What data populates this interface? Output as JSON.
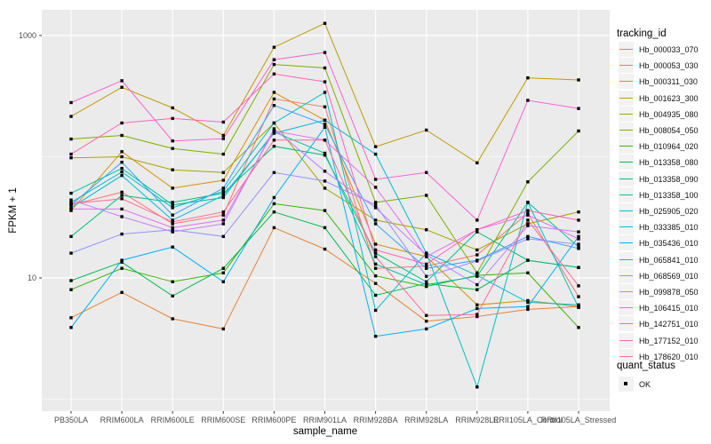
{
  "figure": {
    "x_axis_title": "sample_name",
    "y_axis_title": "FPKM + 1",
    "y_ticks": [
      {
        "label": "1000",
        "value": 1000
      },
      {
        "label": "10",
        "value": 10
      }
    ],
    "legend_tracking": {
      "title": "tracking_id"
    },
    "legend_quant": {
      "title": "quant_status",
      "items": [
        {
          "label": "OK",
          "marker": "black-square"
        }
      ]
    },
    "colors": {
      "panel_background": "#EBEBEB",
      "gridline": "#FFFFFF",
      "point": "#000000",
      "tick_text": "#4D4D4D",
      "legend_key_background": "#F2F2F2"
    }
  },
  "chart_data": {
    "type": "line",
    "x_scale": "categorical",
    "y_scale": "log10",
    "xlabel": "sample_name",
    "ylabel": "FPKM + 1",
    "ylim": [
      0.8,
      1650
    ],
    "y_axis_breaks": [
      10,
      1000
    ],
    "y_minor_breaks": [
      1,
      100
    ],
    "grid": "on",
    "legend_position": "right",
    "point_marker": "small-black-square",
    "categories": [
      "PB350LA",
      "RRIM600LA",
      "RRIM600LE",
      "RRIM600SE",
      "RRIM600PE",
      "RRIM901LA",
      "RRIM928BA",
      "RRIM928LA",
      "RRIM928LE",
      "RRII105LA_Control",
      "RRII105LA_Stressed"
    ],
    "series": [
      {
        "name": "Hb_000033_070",
        "color": "#F8766D",
        "quant_status": "OK",
        "values": [
          40,
          51,
          28,
          33,
          300,
          258,
          12,
          12.5,
          15.5,
          34,
          7
        ]
      },
      {
        "name": "Hb_000053_030",
        "color": "#EA8331",
        "quant_status": "OK",
        "values": [
          4.7,
          7.6,
          4.6,
          3.8,
          26,
          17.3,
          9,
          4.4,
          4.8,
          5.5,
          5.8
        ]
      },
      {
        "name": "Hb_000311_030",
        "color": "#D89000",
        "quant_status": "OK",
        "values": [
          36,
          110,
          55,
          64,
          340,
          200,
          19,
          15,
          6,
          6.5,
          5.8
        ]
      },
      {
        "name": "Hb_001623_300",
        "color": "#C09B00",
        "quant_status": "OK",
        "values": [
          215,
          374,
          253,
          150,
          800,
          1260,
          121,
          166,
          89,
          447,
          430
        ]
      },
      {
        "name": "Hb_004935_080",
        "color": "#A3A500",
        "quant_status": "OK",
        "values": [
          98,
          100,
          78,
          74,
          190,
          55,
          30,
          25,
          17,
          28,
          35
        ]
      },
      {
        "name": "Hb_008054_050",
        "color": "#7CAE00",
        "quant_status": "OK",
        "values": [
          140,
          150,
          117,
          105,
          577,
          540,
          42,
          48,
          11,
          62,
          163
        ]
      },
      {
        "name": "Hb_010964_020",
        "color": "#39B600",
        "quant_status": "OK",
        "values": [
          8,
          12,
          9.3,
          11,
          41,
          36,
          10.4,
          8.5,
          10.5,
          11,
          3.9
        ]
      },
      {
        "name": "Hb_013358_080",
        "color": "#00BB4E",
        "quant_status": "OK",
        "values": [
          9.5,
          13.5,
          7.1,
          12,
          35,
          26,
          7.2,
          9,
          8,
          14,
          12.2
        ]
      },
      {
        "name": "Hb_013358_090",
        "color": "#00BF7D",
        "quant_status": "OK",
        "values": [
          22,
          48,
          42,
          50,
          122,
          103,
          16,
          9.3,
          24,
          14,
          12.2
        ]
      },
      {
        "name": "Hb_013358_100",
        "color": "#00C1A3",
        "quant_status": "OK",
        "values": [
          50,
          80,
          40,
          46,
          160,
          107,
          13,
          8.8,
          10.3,
          42,
          18
        ]
      },
      {
        "name": "Hb_025905_020",
        "color": "#00BFC4",
        "quant_status": "OK",
        "values": [
          42,
          75,
          38,
          52,
          190,
          340,
          5.4,
          16,
          1.26,
          42,
          5.7
        ]
      },
      {
        "name": "Hb_033385_010",
        "color": "#00BBDA",
        "quant_status": "OK",
        "values": [
          38,
          70,
          30,
          48,
          156,
          200,
          105,
          16,
          10.5,
          6.3,
          6
        ]
      },
      {
        "name": "Hb_035436_010",
        "color": "#00B0F6",
        "quant_status": "OK",
        "values": [
          3.9,
          14,
          18,
          9.3,
          46,
          175,
          3.3,
          3.8,
          5.6,
          5.8,
          22
        ]
      },
      {
        "name": "Hb_065841_010",
        "color": "#35A2FF",
        "quant_status": "OK",
        "values": [
          40,
          90,
          33,
          55,
          265,
          185,
          28,
          12,
          14,
          22,
          17.5
        ]
      },
      {
        "name": "Hb_068569_010",
        "color": "#9590FF",
        "quant_status": "OK",
        "values": [
          16,
          23,
          25,
          22,
          74,
          63,
          40,
          10.3,
          13.8,
          21,
          19
        ]
      },
      {
        "name": "Hb_099878_050",
        "color": "#BF80FF",
        "quant_status": "OK",
        "values": [
          44,
          32,
          24,
          28,
          170,
          76,
          38,
          15.5,
          8.8,
          27,
          24
        ]
      },
      {
        "name": "Hb_106415_010",
        "color": "#E76BF3",
        "quant_status": "OK",
        "values": [
          37,
          37,
          26,
          30,
          163,
          137,
          56,
          15,
          25,
          33,
          21
        ]
      },
      {
        "name": "Hb_142751_010",
        "color": "#FD61D1",
        "quant_status": "OK",
        "values": [
          280,
          424,
          135,
          141,
          632,
          725,
          65,
          74,
          30,
          292,
          250
        ]
      },
      {
        "name": "Hb_177152_010",
        "color": "#FF62BC",
        "quant_status": "OK",
        "values": [
          105,
          190,
          207,
          193,
          482,
          415,
          17,
          13,
          25,
          36,
          30
        ]
      },
      {
        "name": "Hb_178620_010",
        "color": "#FF6A98",
        "quant_status": "OK",
        "values": [
          41,
          45,
          29,
          35,
          137,
          137,
          15,
          4.9,
          5,
          30,
          8.6
        ]
      }
    ]
  }
}
